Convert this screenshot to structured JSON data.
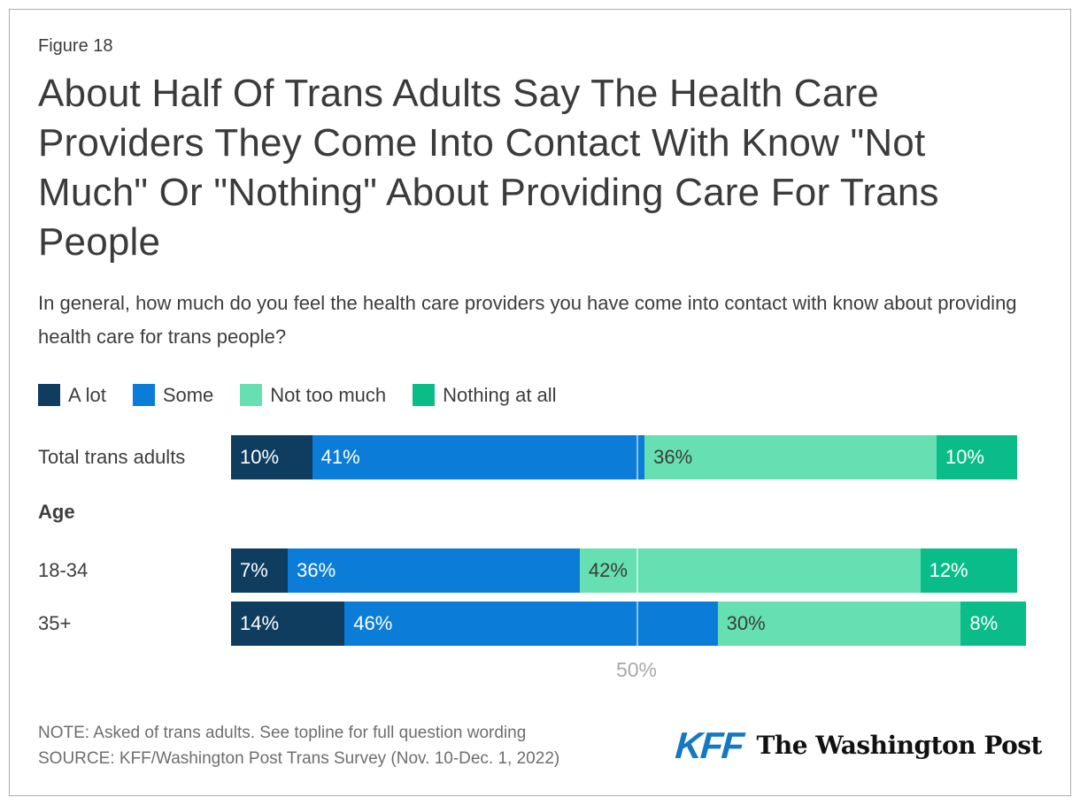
{
  "figure_label": "Figure 18",
  "title": "About Half Of Trans Adults Say The Health Care Providers They Come Into Contact With Know \"Not Much\" Or \"Nothing\" About Providing Care For Trans People",
  "subtitle": "In general, how much do you feel the health care providers you have come into contact with know about providing health care for trans people?",
  "chart_data": {
    "type": "bar",
    "stacked": true,
    "orientation": "horizontal",
    "unit": "%",
    "xlim": [
      0,
      100
    ],
    "x_ticks": [
      {
        "label": "50%",
        "position": 50
      }
    ],
    "grid": "single-vertical-line-at-50",
    "legend_position": "top",
    "series": [
      {
        "name": "A lot",
        "color": "#0E3D60",
        "label_color": "#FFFFFF"
      },
      {
        "name": "Some",
        "color": "#0B7DD8",
        "label_color": "#FFFFFF"
      },
      {
        "name": "Not too much",
        "color": "#66E0B2",
        "label_color": "#3B3B3B"
      },
      {
        "name": "Nothing at all",
        "color": "#0ABD88",
        "label_color": "#FFFFFF"
      }
    ],
    "rows": [
      {
        "type": "bar",
        "label": "Total trans adults",
        "values": [
          10,
          41,
          36,
          10
        ]
      },
      {
        "type": "section",
        "label": "Age"
      },
      {
        "type": "bar",
        "label": "18-34",
        "values": [
          7,
          36,
          42,
          12
        ]
      },
      {
        "type": "bar",
        "label": "35+",
        "values": [
          14,
          46,
          30,
          8
        ]
      }
    ]
  },
  "footer": {
    "note": "NOTE: Asked of trans adults. See topline for full question wording",
    "source": "SOURCE: KFF/Washington Post Trans Survey (Nov. 10-Dec. 1, 2022)",
    "logo_kff": "KFF",
    "logo_wapo": "The Washington Post"
  },
  "style": {
    "kff_blue": "#1578C2",
    "tick_color": "#A9A9A9",
    "border_color": "#ABABAB",
    "title_color": "#3B3B3B",
    "note_color": "#6E6E6E"
  }
}
